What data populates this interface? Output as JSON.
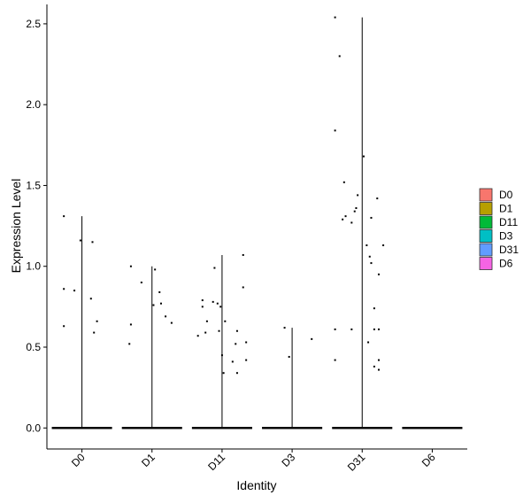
{
  "chart_data": {
    "type": "violin",
    "title": "",
    "xlabel": "Identity",
    "ylabel": "Expression Level",
    "categories": [
      "D0",
      "D1",
      "D11",
      "D3",
      "D31",
      "D6"
    ],
    "ylim": [
      -0.13,
      2.62
    ],
    "yticks": [
      0.0,
      0.5,
      1.0,
      1.5,
      2.0,
      2.5
    ],
    "ytick_labels": [
      "0.0",
      "0.5",
      "1.0",
      "1.5",
      "2.0",
      "2.5"
    ],
    "grid": false,
    "legend": {
      "position": "right",
      "entries": [
        {
          "label": "D0",
          "color": "#F8766D"
        },
        {
          "label": "D1",
          "color": "#B79F00"
        },
        {
          "label": "D11",
          "color": "#00BA38"
        },
        {
          "label": "D3",
          "color": "#00BFC4"
        },
        {
          "label": "D31",
          "color": "#619CFF"
        },
        {
          "label": "D6",
          "color": "#F564E3"
        }
      ]
    },
    "series": [
      {
        "category": "D0",
        "max": 1.31,
        "points": [
          [
            -0.6,
            1.31
          ],
          [
            -0.05,
            1.16
          ],
          [
            0.35,
            1.15
          ],
          [
            -0.6,
            0.86
          ],
          [
            -0.25,
            0.85
          ],
          [
            0.3,
            0.8
          ],
          [
            0.5,
            0.66
          ],
          [
            -0.6,
            0.63
          ],
          [
            0.4,
            0.59
          ]
        ]
      },
      {
        "category": "D1",
        "max": 1.0,
        "points": [
          [
            -0.7,
            1.0
          ],
          [
            0.1,
            0.98
          ],
          [
            -0.35,
            0.9
          ],
          [
            0.25,
            0.84
          ],
          [
            -0.7,
            0.64
          ],
          [
            0.3,
            0.77
          ],
          [
            0.05,
            0.76
          ],
          [
            0.45,
            0.69
          ],
          [
            0.65,
            0.65
          ],
          [
            -0.75,
            0.52
          ]
        ]
      },
      {
        "category": "D11",
        "max": 1.07,
        "points": [
          [
            -0.25,
            0.99
          ],
          [
            0.7,
            1.07
          ],
          [
            0.7,
            0.87
          ],
          [
            -0.65,
            0.79
          ],
          [
            -0.3,
            0.78
          ],
          [
            -0.15,
            0.77
          ],
          [
            -0.65,
            0.75
          ],
          [
            -0.05,
            0.75
          ],
          [
            0.1,
            0.66
          ],
          [
            -0.5,
            0.66
          ],
          [
            -0.1,
            0.6
          ],
          [
            0.5,
            0.6
          ],
          [
            -0.55,
            0.59
          ],
          [
            -0.8,
            0.57
          ],
          [
            0.8,
            0.53
          ],
          [
            0.45,
            0.52
          ],
          [
            0.0,
            0.45
          ],
          [
            0.8,
            0.42
          ],
          [
            0.35,
            0.41
          ],
          [
            0.05,
            0.34
          ],
          [
            0.5,
            0.34
          ]
        ]
      },
      {
        "category": "D3",
        "max": 0.62,
        "points": [
          [
            -0.25,
            0.62
          ],
          [
            0.65,
            0.55
          ],
          [
            -0.1,
            0.44
          ]
        ]
      },
      {
        "category": "D31",
        "max": 2.54,
        "points": [
          [
            -0.9,
            2.54
          ],
          [
            -0.75,
            2.3
          ],
          [
            -0.9,
            1.84
          ],
          [
            0.05,
            1.68
          ],
          [
            -0.6,
            1.52
          ],
          [
            -0.15,
            1.44
          ],
          [
            0.5,
            1.42
          ],
          [
            -0.2,
            1.36
          ],
          [
            -0.25,
            1.34
          ],
          [
            -0.55,
            1.31
          ],
          [
            0.3,
            1.3
          ],
          [
            -0.65,
            1.29
          ],
          [
            -0.35,
            1.27
          ],
          [
            0.7,
            1.13
          ],
          [
            0.15,
            1.13
          ],
          [
            0.25,
            1.06
          ],
          [
            0.3,
            1.02
          ],
          [
            0.55,
            0.95
          ],
          [
            0.4,
            0.74
          ],
          [
            -0.9,
            0.61
          ],
          [
            -0.35,
            0.61
          ],
          [
            0.4,
            0.61
          ],
          [
            0.55,
            0.61
          ],
          [
            0.2,
            0.53
          ],
          [
            0.55,
            0.42
          ],
          [
            0.4,
            0.38
          ],
          [
            0.55,
            0.36
          ],
          [
            -0.9,
            0.42
          ]
        ]
      },
      {
        "category": "D6",
        "max": 0.0,
        "points": []
      }
    ]
  }
}
